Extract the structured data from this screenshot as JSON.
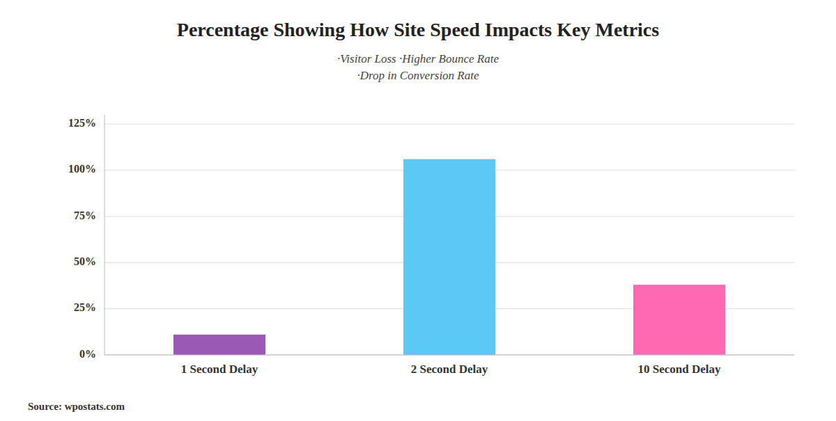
{
  "chart_data": {
    "type": "bar",
    "title": "Percentage Showing How Site Speed Impacts Key Metrics",
    "subtitle": [
      "·Visitor Loss  ·Higher Bounce Rate",
      "·Drop in Conversion Rate"
    ],
    "annotations": [
      "Source: wpostats.com"
    ],
    "categories": [
      "1 Second Delay",
      "2 Second Delay",
      "10 Second Delay"
    ],
    "values": [
      11,
      106,
      38
    ],
    "colors": [
      "#9B59B6",
      "#5BC8F5",
      "#FF69B4"
    ],
    "ylim": [
      0,
      130
    ],
    "yticks": [
      {
        "value": 0,
        "label": "0%"
      },
      {
        "value": 25,
        "label": "25%"
      },
      {
        "value": 50,
        "label": "50%"
      },
      {
        "value": 75,
        "label": "75%"
      },
      {
        "value": 100,
        "label": "100%"
      },
      {
        "value": 125,
        "label": "125%"
      }
    ],
    "grid": true
  }
}
